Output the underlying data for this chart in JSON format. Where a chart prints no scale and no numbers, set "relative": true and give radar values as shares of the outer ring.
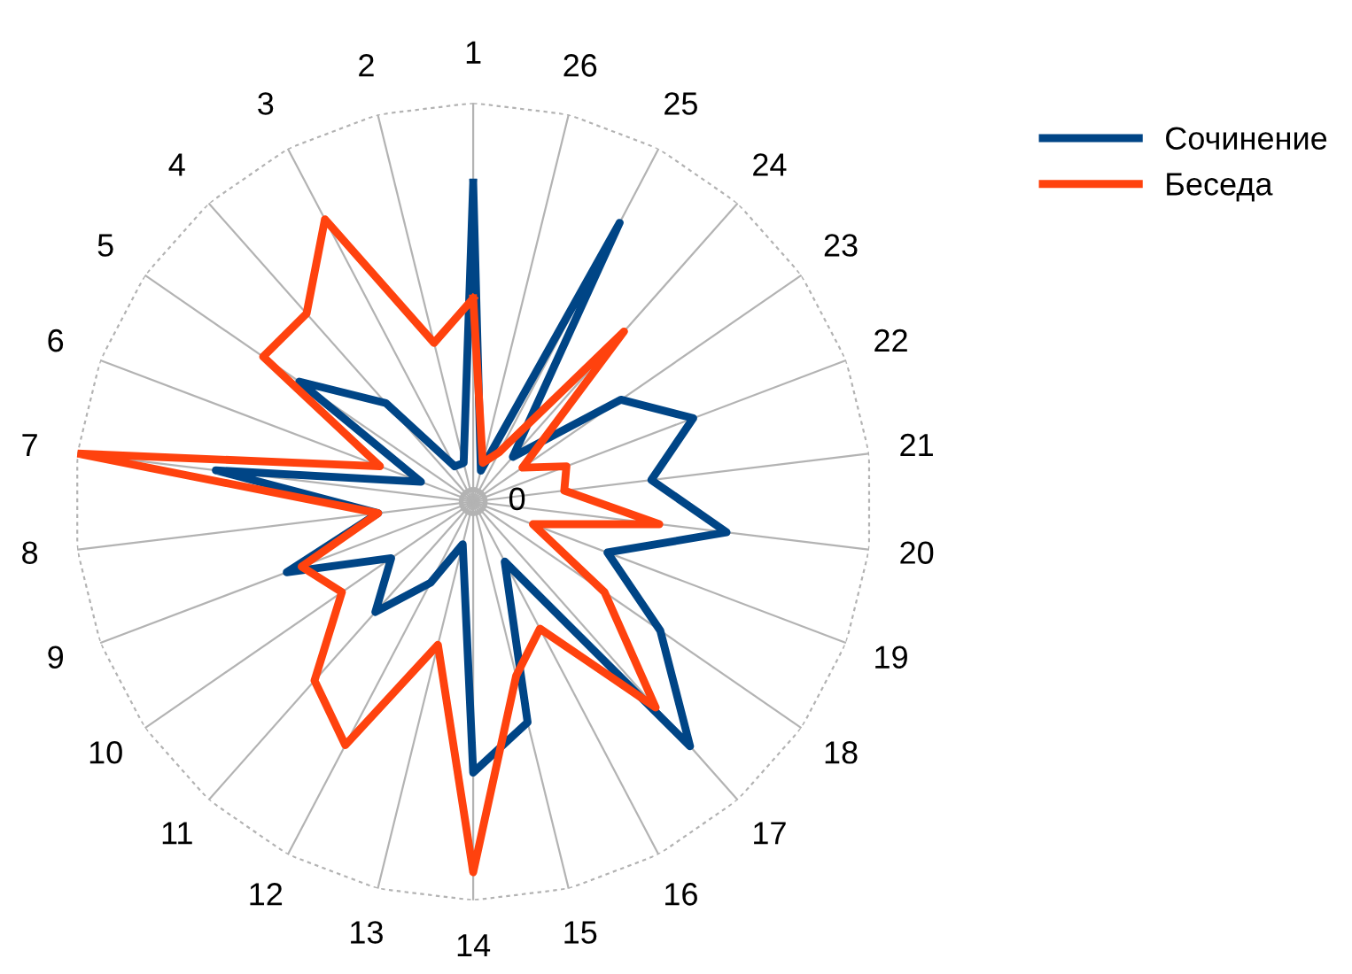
{
  "chart_data": {
    "type": "radar",
    "relative": true,
    "grid": true,
    "legend": "right",
    "marker": "none",
    "line_style": "solid",
    "categories": [
      "1",
      "26",
      "25",
      "24",
      "23",
      "22",
      "21",
      "20",
      "19",
      "18",
      "17",
      "16",
      "15",
      "14",
      "13",
      "12",
      "11",
      "10",
      "9",
      "8",
      "7",
      "6",
      "5",
      "4",
      "3",
      "2"
    ],
    "annotations": [
      "0"
    ],
    "series": [
      {
        "name": "Сочинение",
        "color": "#004586",
        "values": [
          0.8,
          0.08,
          0.79,
          0.15,
          0.45,
          0.59,
          0.45,
          0.64,
          0.36,
          0.57,
          0.82,
          0.17,
          0.57,
          0.68,
          0.11,
          0.23,
          0.37,
          0.25,
          0.5,
          0.24,
          0.65,
          0.14,
          0.53,
          0.33,
          0.1,
          0.1
        ]
      },
      {
        "name": "Беседа",
        "color": "#ff420e",
        "values": [
          0.51,
          0.1,
          0.14,
          0.57,
          0.15,
          0.25,
          0.23,
          0.47,
          0.16,
          0.4,
          0.69,
          0.36,
          0.45,
          0.93,
          0.37,
          0.69,
          0.6,
          0.4,
          0.46,
          0.24,
          1.0,
          0.25,
          0.64,
          0.63,
          0.8,
          0.41
        ]
      }
    ]
  }
}
